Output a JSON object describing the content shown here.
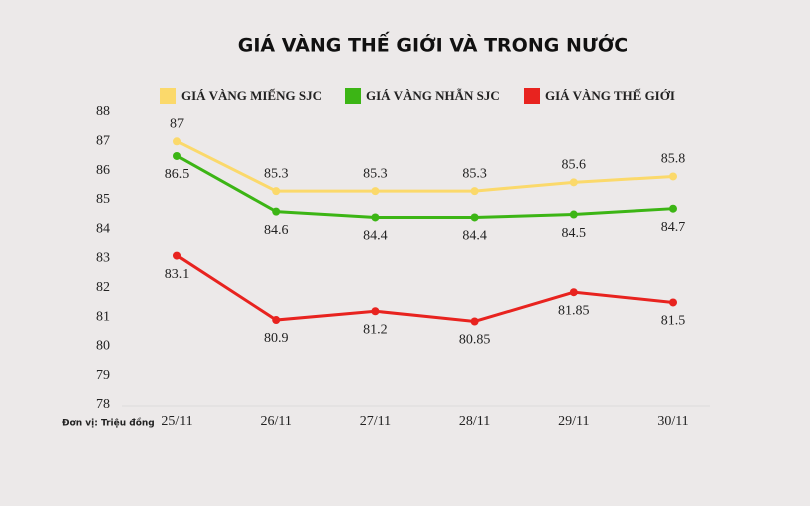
{
  "chart_data": {
    "type": "line",
    "title": "GIÁ VÀNG THẾ GIỚI VÀ TRONG NƯỚC",
    "unit_label": "Đơn vị: Triệu đồng",
    "categories": [
      "25/11",
      "26/11",
      "27/11",
      "28/11",
      "29/11",
      "30/11"
    ],
    "series": [
      {
        "name": "GIÁ VÀNG MIẾNG SJC",
        "color": "#fbd96b",
        "values": [
          87,
          85.3,
          85.3,
          85.3,
          85.6,
          85.8
        ]
      },
      {
        "name": "GIÁ VÀNG NHẪN SJC",
        "color": "#3cb515",
        "values": [
          86.5,
          84.6,
          84.4,
          84.4,
          84.5,
          84.7
        ]
      },
      {
        "name": "GIÁ VÀNG THẾ GIỚI",
        "color": "#e8231f",
        "values": [
          83.1,
          80.9,
          81.2,
          80.85,
          81.85,
          81.5
        ]
      }
    ],
    "ylim": [
      78,
      88
    ],
    "yticks": [
      78,
      79,
      80,
      81,
      82,
      83,
      84,
      85,
      86,
      87,
      88
    ],
    "grid": false
  }
}
